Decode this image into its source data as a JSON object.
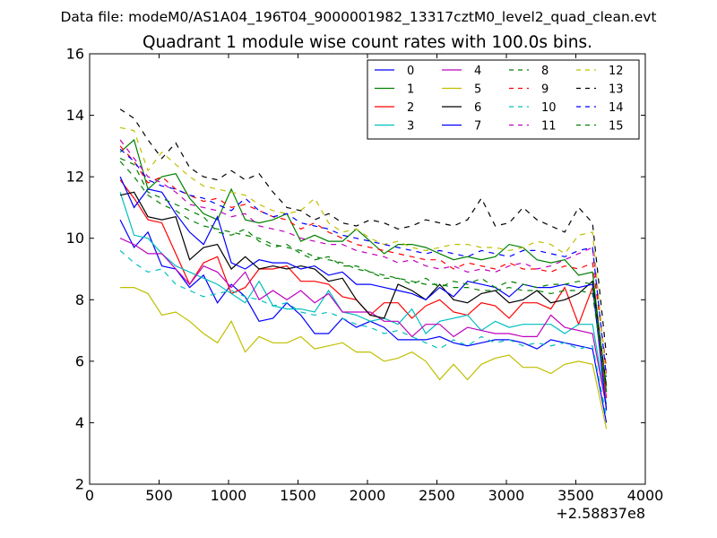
{
  "suptitle": "Data file: modeM0/AS1A04_196T04_9000001982_13317cztM0_level2_quad_clean.evt",
  "chart_data": {
    "type": "line",
    "title": "Quadrant 1 module wise count rates with 100.0s bins.",
    "xlabel": "",
    "ylabel": "",
    "x_offset_label": "+2.58837e8",
    "xlim": [
      0,
      4000
    ],
    "ylim": [
      2,
      16
    ],
    "xticks": [
      0,
      500,
      1000,
      1500,
      2000,
      2500,
      3000,
      3500,
      4000
    ],
    "yticks": [
      2,
      4,
      6,
      8,
      10,
      12,
      14,
      16
    ],
    "grid": false,
    "legend_position": "top-right",
    "x": [
      220,
      320,
      420,
      520,
      620,
      720,
      820,
      920,
      1020,
      1120,
      1220,
      1320,
      1420,
      1520,
      1620,
      1720,
      1820,
      1920,
      2020,
      2120,
      2220,
      2320,
      2420,
      2520,
      2620,
      2720,
      2820,
      2920,
      3020,
      3120,
      3220,
      3320,
      3420,
      3520,
      3620,
      3720
    ],
    "series": [
      {
        "name": "0",
        "color": "#0000ff",
        "dash": "solid",
        "values": [
          10.6,
          9.7,
          10.2,
          9.1,
          9.0,
          8.4,
          8.8,
          7.9,
          8.5,
          8.1,
          7.3,
          7.4,
          7.9,
          7.5,
          6.9,
          6.9,
          7.4,
          7.1,
          7.3,
          7.1,
          6.7,
          6.7,
          6.7,
          6.8,
          6.6,
          6.5,
          6.6,
          6.7,
          6.7,
          6.6,
          6.4,
          6.7,
          6.6,
          6.5,
          6.4,
          4.0
        ]
      },
      {
        "name": "1",
        "color": "#008000",
        "dash": "solid",
        "values": [
          12.8,
          13.2,
          11.6,
          12.0,
          12.1,
          11.3,
          10.8,
          10.6,
          11.6,
          10.6,
          10.5,
          10.6,
          10.8,
          9.9,
          10.1,
          9.9,
          9.9,
          10.3,
          9.9,
          9.5,
          9.8,
          9.8,
          9.7,
          9.5,
          9.3,
          9.4,
          9.3,
          9.4,
          9.8,
          9.7,
          9.3,
          9.2,
          9.3,
          8.8,
          8.9,
          5.0
        ]
      },
      {
        "name": "2",
        "color": "#ff0000",
        "dash": "solid",
        "values": [
          11.9,
          11.3,
          10.6,
          10.5,
          9.5,
          8.5,
          9.2,
          9.4,
          8.2,
          8.4,
          9.0,
          9.0,
          9.1,
          8.6,
          8.6,
          8.5,
          8.1,
          8.0,
          7.5,
          7.9,
          7.9,
          7.4,
          7.8,
          8.0,
          7.6,
          7.5,
          7.9,
          7.8,
          7.4,
          7.9,
          7.9,
          7.7,
          8.4,
          7.2,
          8.4,
          4.8
        ]
      },
      {
        "name": "3",
        "color": "#00bfbf",
        "dash": "solid",
        "values": [
          11.5,
          10.1,
          10.0,
          9.5,
          9.1,
          8.9,
          8.7,
          8.5,
          8.2,
          7.9,
          8.6,
          7.8,
          7.7,
          7.7,
          7.6,
          8.3,
          7.6,
          7.5,
          7.3,
          7.4,
          7.2,
          7.7,
          6.9,
          7.3,
          7.4,
          7.5,
          7.0,
          7.3,
          7.1,
          7.2,
          7.2,
          7.2,
          6.9,
          7.2,
          7.2,
          4.6
        ]
      },
      {
        "name": "4",
        "color": "#bf00bf",
        "dash": "solid",
        "values": [
          10.0,
          9.8,
          9.5,
          9.5,
          9.0,
          8.5,
          9.1,
          8.9,
          8.4,
          8.9,
          8.0,
          8.3,
          8.0,
          8.3,
          7.9,
          8.2,
          7.6,
          7.6,
          7.6,
          7.3,
          7.3,
          6.8,
          7.2,
          7.2,
          6.8,
          7.1,
          7.0,
          6.9,
          6.9,
          6.8,
          6.8,
          7.5,
          7.1,
          7.0,
          6.9,
          4.5
        ]
      },
      {
        "name": "5",
        "color": "#bfbf00",
        "dash": "solid",
        "values": [
          8.4,
          8.4,
          8.2,
          7.5,
          7.6,
          7.3,
          6.9,
          6.6,
          7.3,
          6.3,
          6.8,
          6.6,
          6.6,
          6.8,
          6.4,
          6.5,
          6.6,
          6.3,
          6.3,
          6.0,
          6.1,
          6.3,
          6.0,
          5.4,
          5.9,
          5.4,
          5.9,
          6.1,
          6.2,
          5.8,
          5.8,
          5.6,
          5.9,
          6.0,
          5.9,
          3.8
        ]
      },
      {
        "name": "6",
        "color": "#000000",
        "dash": "solid",
        "values": [
          11.4,
          11.5,
          10.7,
          10.6,
          10.7,
          9.3,
          9.7,
          9.8,
          9.0,
          9.4,
          9.0,
          9.1,
          9.0,
          9.1,
          9.0,
          8.6,
          8.7,
          8.0,
          7.5,
          7.4,
          8.5,
          8.3,
          8.0,
          8.5,
          8.0,
          7.9,
          8.2,
          8.3,
          7.9,
          8.0,
          8.3,
          7.9,
          8.0,
          8.2,
          8.6,
          5.2
        ]
      },
      {
        "name": "7",
        "color": "#0000ff",
        "dash": "solid",
        "values": [
          12.0,
          11.0,
          11.6,
          11.5,
          10.8,
          10.2,
          9.8,
          10.7,
          9.2,
          9.0,
          9.3,
          9.2,
          9.2,
          9.0,
          9.1,
          8.8,
          8.9,
          8.5,
          8.5,
          8.4,
          8.3,
          8.2,
          8.0,
          8.4,
          8.1,
          8.6,
          8.5,
          8.4,
          8.1,
          8.5,
          8.4,
          8.4,
          8.5,
          8.4,
          8.5,
          4.4
        ]
      },
      {
        "name": "8",
        "color": "#008000",
        "dash": "dashed",
        "values": [
          12.6,
          12.4,
          11.5,
          11.3,
          11.1,
          10.9,
          10.7,
          10.2,
          10.1,
          10.3,
          9.9,
          9.7,
          9.8,
          9.5,
          9.3,
          9.4,
          9.1,
          9.1,
          8.9,
          8.7,
          8.7,
          8.5,
          8.7,
          8.4,
          8.6,
          8.5,
          8.7,
          8.4,
          8.6,
          8.5,
          8.4,
          8.5,
          8.5,
          8.6,
          8.5,
          5.2
        ]
      },
      {
        "name": "9",
        "color": "#ff0000",
        "dash": "dashed",
        "values": [
          13.0,
          12.5,
          11.8,
          12.0,
          11.6,
          11.4,
          11.2,
          11.3,
          11.0,
          11.1,
          10.9,
          10.7,
          10.6,
          10.3,
          10.5,
          10.2,
          10.0,
          9.8,
          9.7,
          9.6,
          9.5,
          9.4,
          9.3,
          9.3,
          9.0,
          9.2,
          9.1,
          9.0,
          9.2,
          9.0,
          9.0,
          8.9,
          9.1,
          9.0,
          9.2,
          5.8
        ]
      },
      {
        "name": "10",
        "color": "#00bfbf",
        "dash": "dashed",
        "values": [
          9.6,
          9.2,
          8.9,
          9.0,
          8.5,
          8.3,
          8.1,
          8.2,
          8.3,
          8.1,
          8.0,
          7.8,
          7.9,
          7.6,
          7.5,
          7.6,
          7.4,
          7.2,
          7.1,
          6.9,
          7.0,
          6.8,
          6.6,
          6.4,
          6.7,
          6.5,
          6.8,
          6.6,
          6.7,
          6.5,
          6.6,
          6.5,
          6.6,
          6.4,
          6.5,
          4.2
        ]
      },
      {
        "name": "11",
        "color": "#bf00bf",
        "dash": "dashed",
        "values": [
          13.2,
          12.6,
          12.0,
          11.8,
          11.5,
          11.1,
          11.0,
          10.9,
          10.7,
          10.8,
          10.4,
          10.3,
          10.2,
          10.0,
          9.9,
          9.8,
          9.8,
          9.6,
          9.5,
          9.4,
          9.2,
          9.3,
          9.1,
          9.0,
          9.1,
          8.9,
          9.0,
          8.9,
          9.1,
          9.2,
          9.0,
          9.1,
          9.3,
          9.5,
          9.7,
          5.6
        ]
      },
      {
        "name": "12",
        "color": "#bfbf00",
        "dash": "dashed",
        "values": [
          13.6,
          13.5,
          12.2,
          12.8,
          12.4,
          12.0,
          11.7,
          11.6,
          11.5,
          11.4,
          11.1,
          10.9,
          10.8,
          10.9,
          11.3,
          10.5,
          10.2,
          10.3,
          10.0,
          9.8,
          9.9,
          9.7,
          9.6,
          9.7,
          9.8,
          9.8,
          9.7,
          9.7,
          9.6,
          9.7,
          9.9,
          9.8,
          9.5,
          10.1,
          10.2,
          5.4
        ]
      },
      {
        "name": "13",
        "color": "#000000",
        "dash": "dashed",
        "values": [
          14.2,
          13.9,
          13.2,
          12.6,
          13.1,
          12.3,
          12.0,
          11.9,
          12.2,
          11.9,
          12.1,
          11.5,
          11.0,
          10.9,
          10.6,
          10.8,
          10.5,
          10.4,
          10.6,
          10.5,
          10.3,
          10.4,
          10.6,
          10.5,
          10.4,
          10.6,
          11.3,
          10.4,
          10.5,
          11.0,
          10.6,
          10.4,
          10.2,
          11.0,
          10.5,
          6.2
        ]
      },
      {
        "name": "14",
        "color": "#0000ff",
        "dash": "dashed",
        "values": [
          12.9,
          12.5,
          11.9,
          11.7,
          11.6,
          11.4,
          11.3,
          11.1,
          10.9,
          11.3,
          10.9,
          10.7,
          10.8,
          10.5,
          10.4,
          10.3,
          10.1,
          10.0,
          9.9,
          9.8,
          9.7,
          9.6,
          9.5,
          9.6,
          9.5,
          9.4,
          9.6,
          9.5,
          9.4,
          9.6,
          9.6,
          9.5,
          9.4,
          9.6,
          9.7,
          5.5
        ]
      },
      {
        "name": "15",
        "color": "#008000",
        "dash": "dashed",
        "values": [
          12.5,
          12.0,
          11.4,
          11.1,
          10.9,
          10.6,
          10.4,
          10.3,
          10.2,
          10.1,
          10.0,
          9.8,
          9.7,
          9.6,
          9.4,
          9.3,
          9.2,
          9.0,
          8.9,
          8.8,
          8.7,
          8.6,
          8.5,
          8.5,
          8.4,
          8.4,
          8.3,
          8.3,
          8.4,
          8.3,
          8.3,
          8.2,
          8.3,
          8.3,
          8.2,
          5.0
        ]
      }
    ]
  }
}
